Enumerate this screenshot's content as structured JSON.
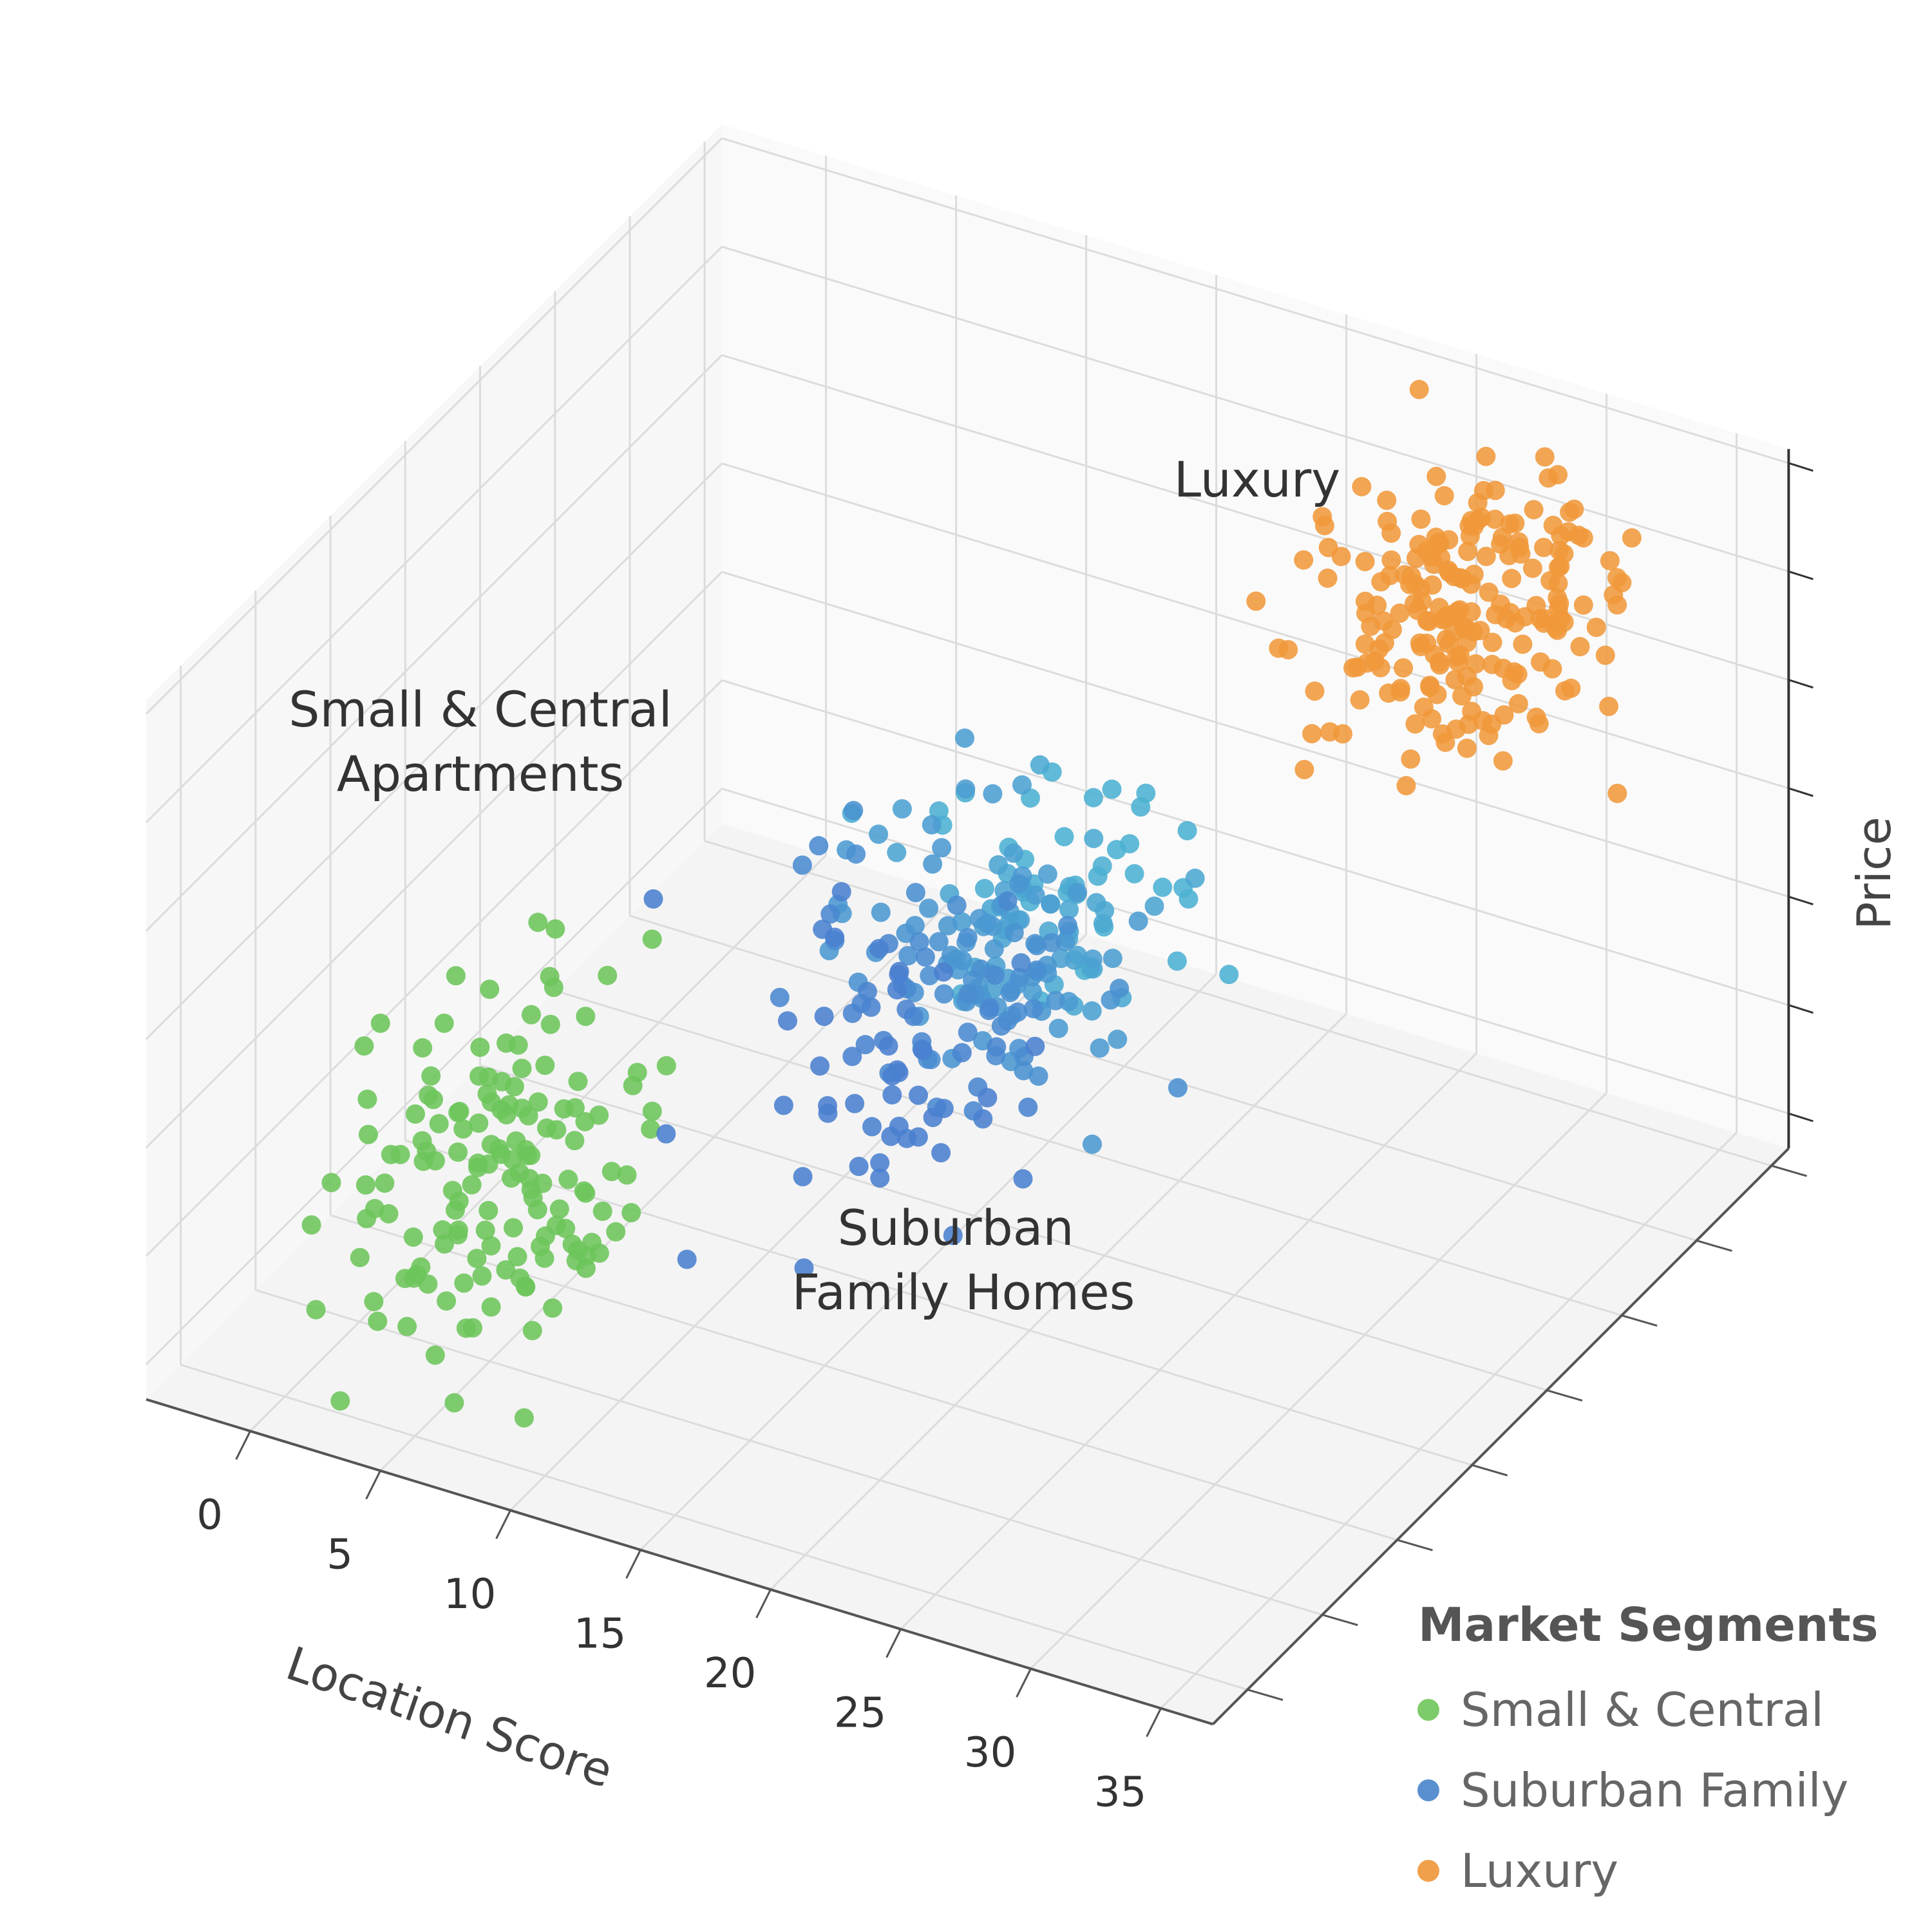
{
  "chart_data": {
    "type": "scatter",
    "projection": "3d",
    "xlabel": "Location Score",
    "ylabel": "",
    "zlabel": "Price",
    "x_ticks": [
      "0",
      "5",
      "10",
      "15",
      "20",
      "25",
      "30",
      "35"
    ],
    "xlim": [
      -4,
      37
    ],
    "grid": true,
    "legend": {
      "title": "Market Segments",
      "placement": "bottom-right"
    },
    "series": [
      {
        "name": "Small & Central",
        "color": "#6cc55a",
        "count": 150,
        "center": {
          "x": 5,
          "depth": 2,
          "price": 2.6
        },
        "spread": {
          "x": 2.4,
          "depth": 0.9,
          "price": 1.1
        }
      },
      {
        "name": "Suburban Family",
        "color": "#4a7fcf",
        "color_light": "#4bb0d2",
        "count": 260,
        "center": {
          "x": 17,
          "depth": 5,
          "price": 4.5
        },
        "spread": {
          "x": 2.6,
          "depth": 1.1,
          "price": 0.9
        }
      },
      {
        "name": "Luxury",
        "color": "#f0993a",
        "count": 210,
        "center": {
          "x": 29,
          "depth": 8,
          "price": 8.4
        },
        "spread": {
          "x": 2.4,
          "depth": 0.8,
          "price": 0.9
        }
      }
    ],
    "annotations": [
      {
        "lines": [
          "Small & Central",
          "Apartments"
        ]
      },
      {
        "lines": [
          "Suburban",
          "Family Homes"
        ]
      },
      {
        "lines": [
          "Luxury"
        ]
      }
    ]
  }
}
